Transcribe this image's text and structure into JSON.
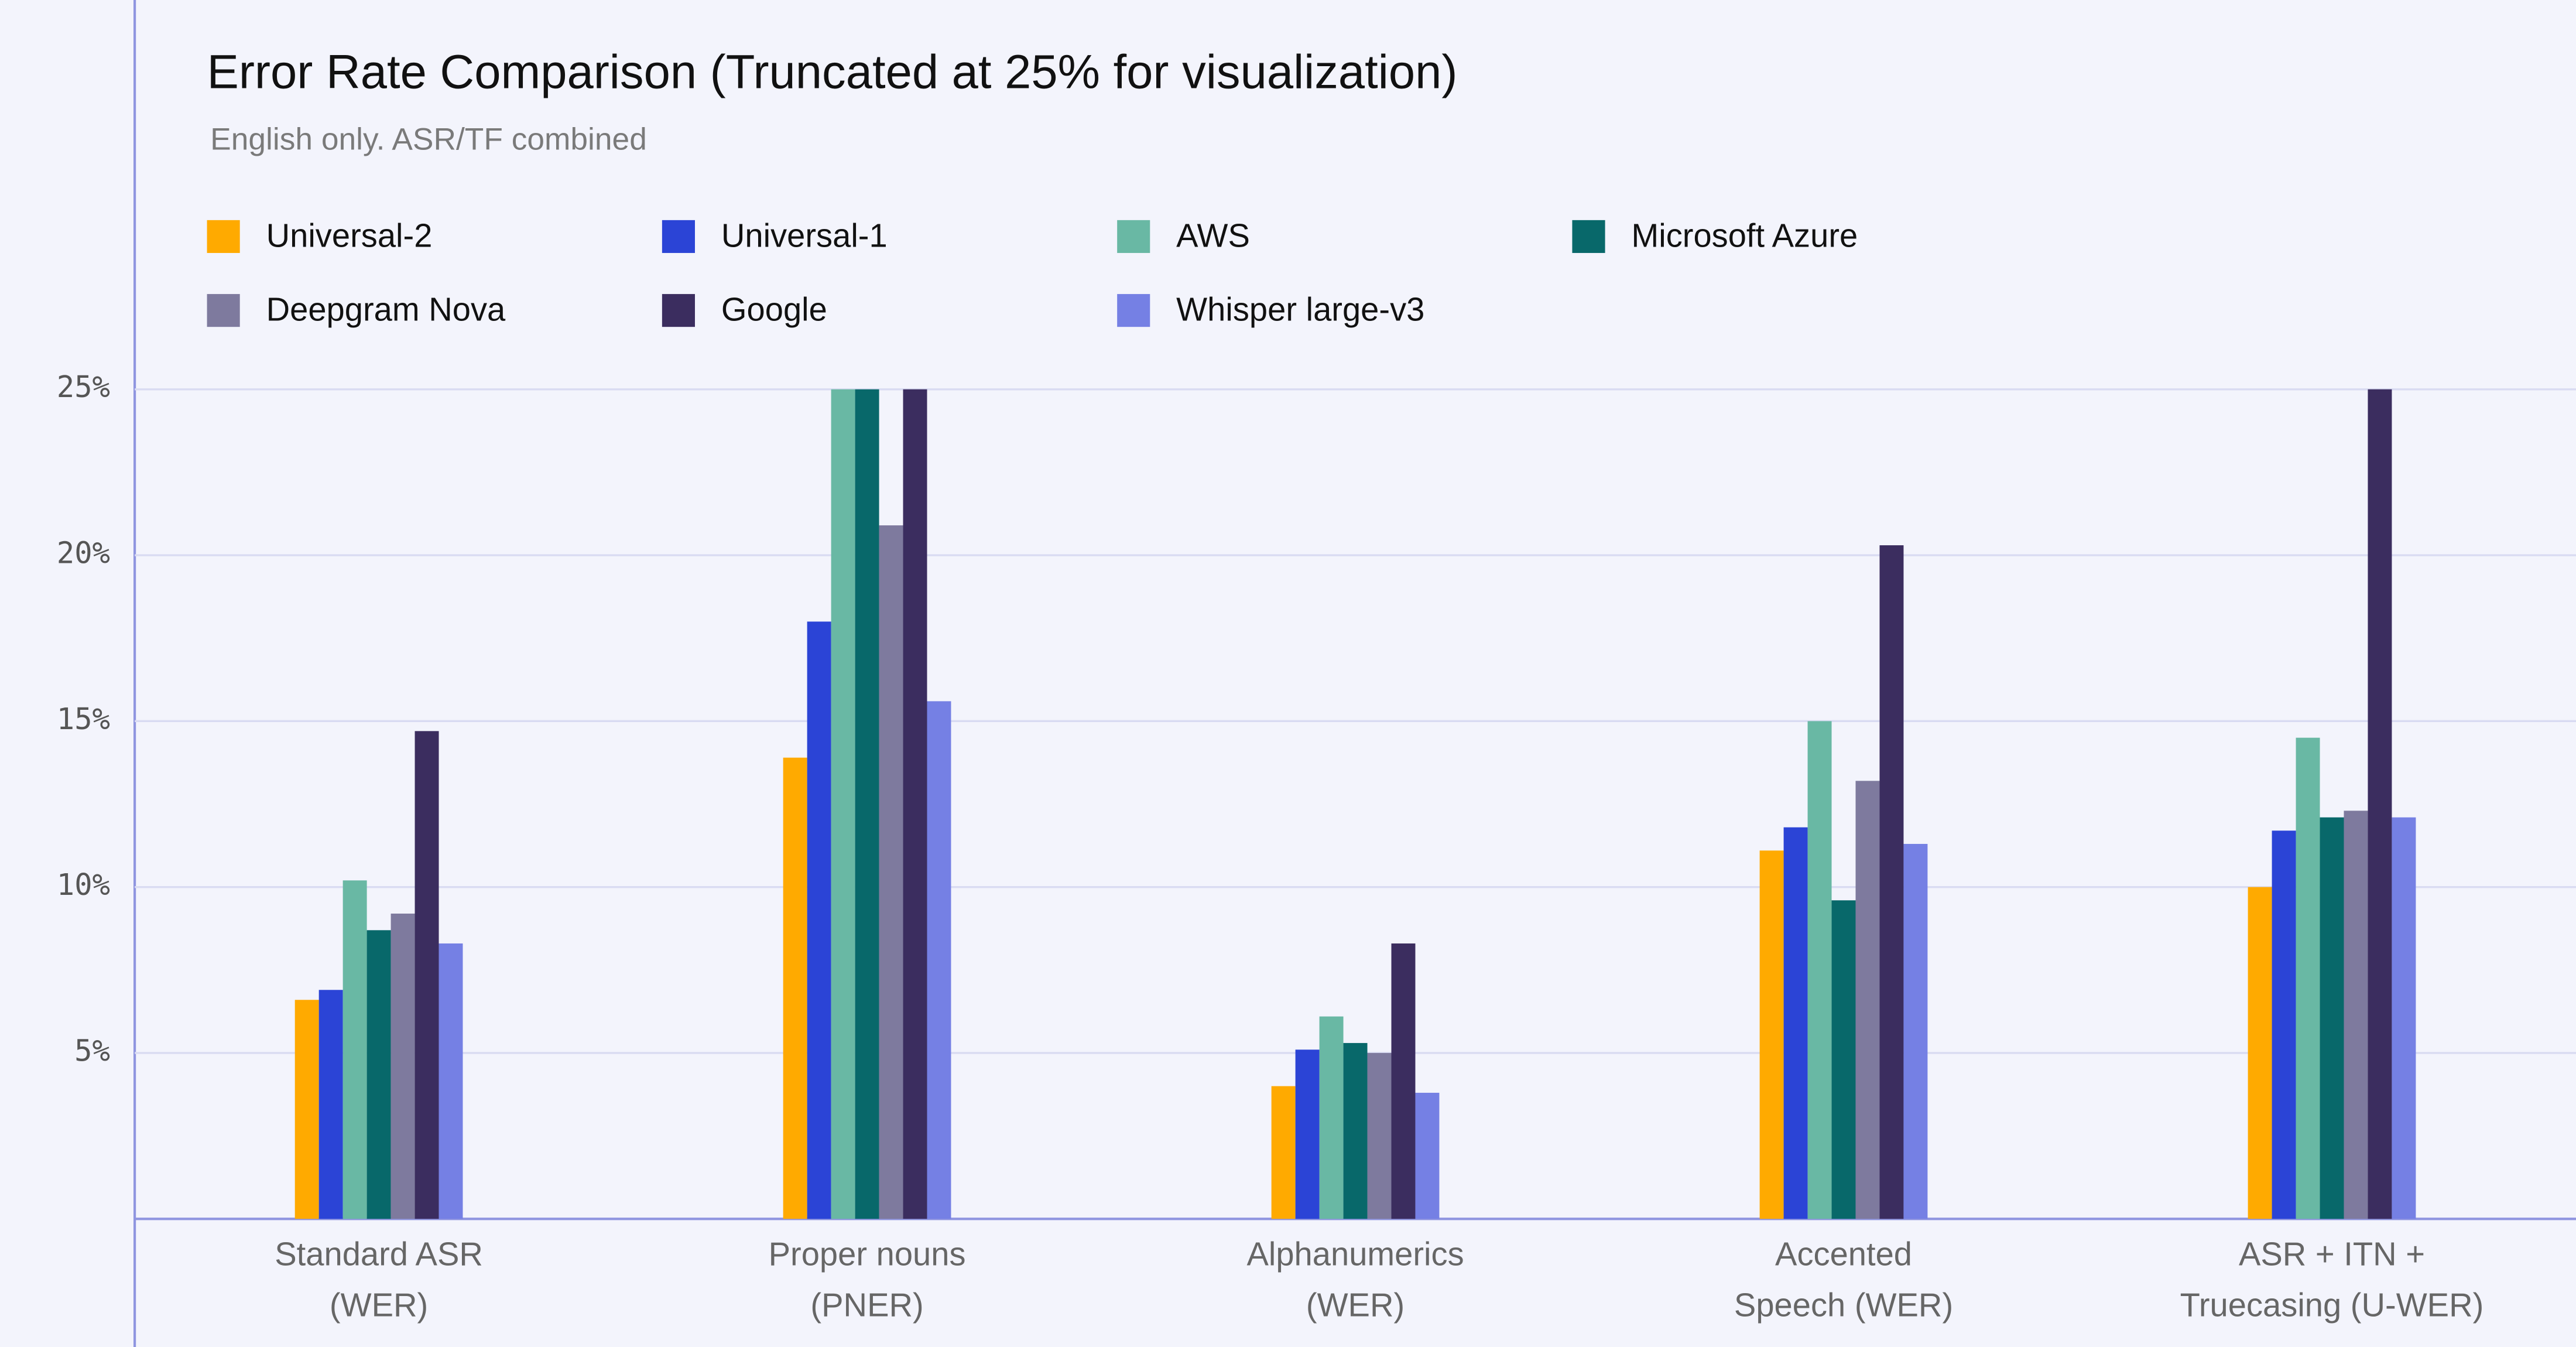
{
  "chart_data": {
    "type": "bar",
    "title": "Error Rate Comparison (Truncated at 25% for visualization)",
    "subtitle": "English only. ASR/TF combined",
    "categories": [
      [
        "Standard ASR",
        "(WER)"
      ],
      [
        "Proper nouns",
        "(PNER)"
      ],
      [
        "Alphanumerics",
        "(WER)"
      ],
      [
        "Accented",
        "Speech (WER)"
      ],
      [
        "ASR + ITN +",
        "Truecasing (U-WER)"
      ]
    ],
    "series": [
      {
        "name": "Universal-2",
        "color": "#ffaa00",
        "values": [
          6.6,
          13.9,
          4.0,
          11.1,
          10.0
        ]
      },
      {
        "name": "Universal-1",
        "color": "#2b44d6",
        "values": [
          6.9,
          18.0,
          5.1,
          11.8,
          11.7
        ]
      },
      {
        "name": "AWS",
        "color": "#69b8a4",
        "values": [
          10.2,
          25,
          6.1,
          15.0,
          14.5
        ]
      },
      {
        "name": "Microsoft Azure",
        "color": "#08686a",
        "values": [
          8.7,
          25,
          5.3,
          9.6,
          12.1
        ]
      },
      {
        "name": "Deepgram Nova",
        "color": "#7e7a9e",
        "values": [
          9.2,
          20.9,
          5.0,
          13.2,
          12.3
        ]
      },
      {
        "name": "Google",
        "color": "#3b2d5f",
        "values": [
          14.7,
          25,
          8.3,
          20.3,
          25
        ]
      },
      {
        "name": "Whisper large-v3",
        "color": "#7580e4",
        "values": [
          8.3,
          15.6,
          3.8,
          11.3,
          12.1
        ]
      }
    ],
    "ylim": [
      0,
      25
    ],
    "yticks": [
      {
        "value": 5,
        "label": "5%"
      },
      {
        "value": 10,
        "label": "10%"
      },
      {
        "value": 15,
        "label": "15%"
      },
      {
        "value": 20,
        "label": "20%"
      },
      {
        "value": 25,
        "label": "25%"
      }
    ],
    "grid": true
  }
}
